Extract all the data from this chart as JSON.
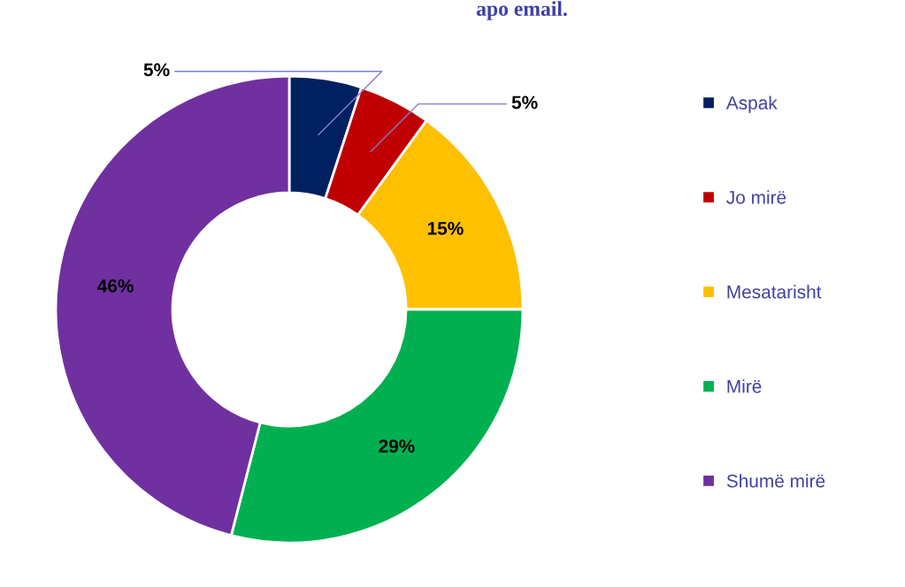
{
  "chart_data": {
    "type": "donut",
    "title": "apo email.",
    "categories": [
      "Aspak",
      "Jo mirë",
      "Mesatarisht",
      "Mirë",
      "Shumë mirë"
    ],
    "values": [
      5,
      5,
      15,
      29,
      46
    ],
    "colors": [
      "#002060",
      "#c00000",
      "#ffc000",
      "#00b050",
      "#7030a0"
    ],
    "value_labels": [
      "5%",
      "5%",
      "15%",
      "29%",
      "46%"
    ],
    "legend": "right"
  }
}
